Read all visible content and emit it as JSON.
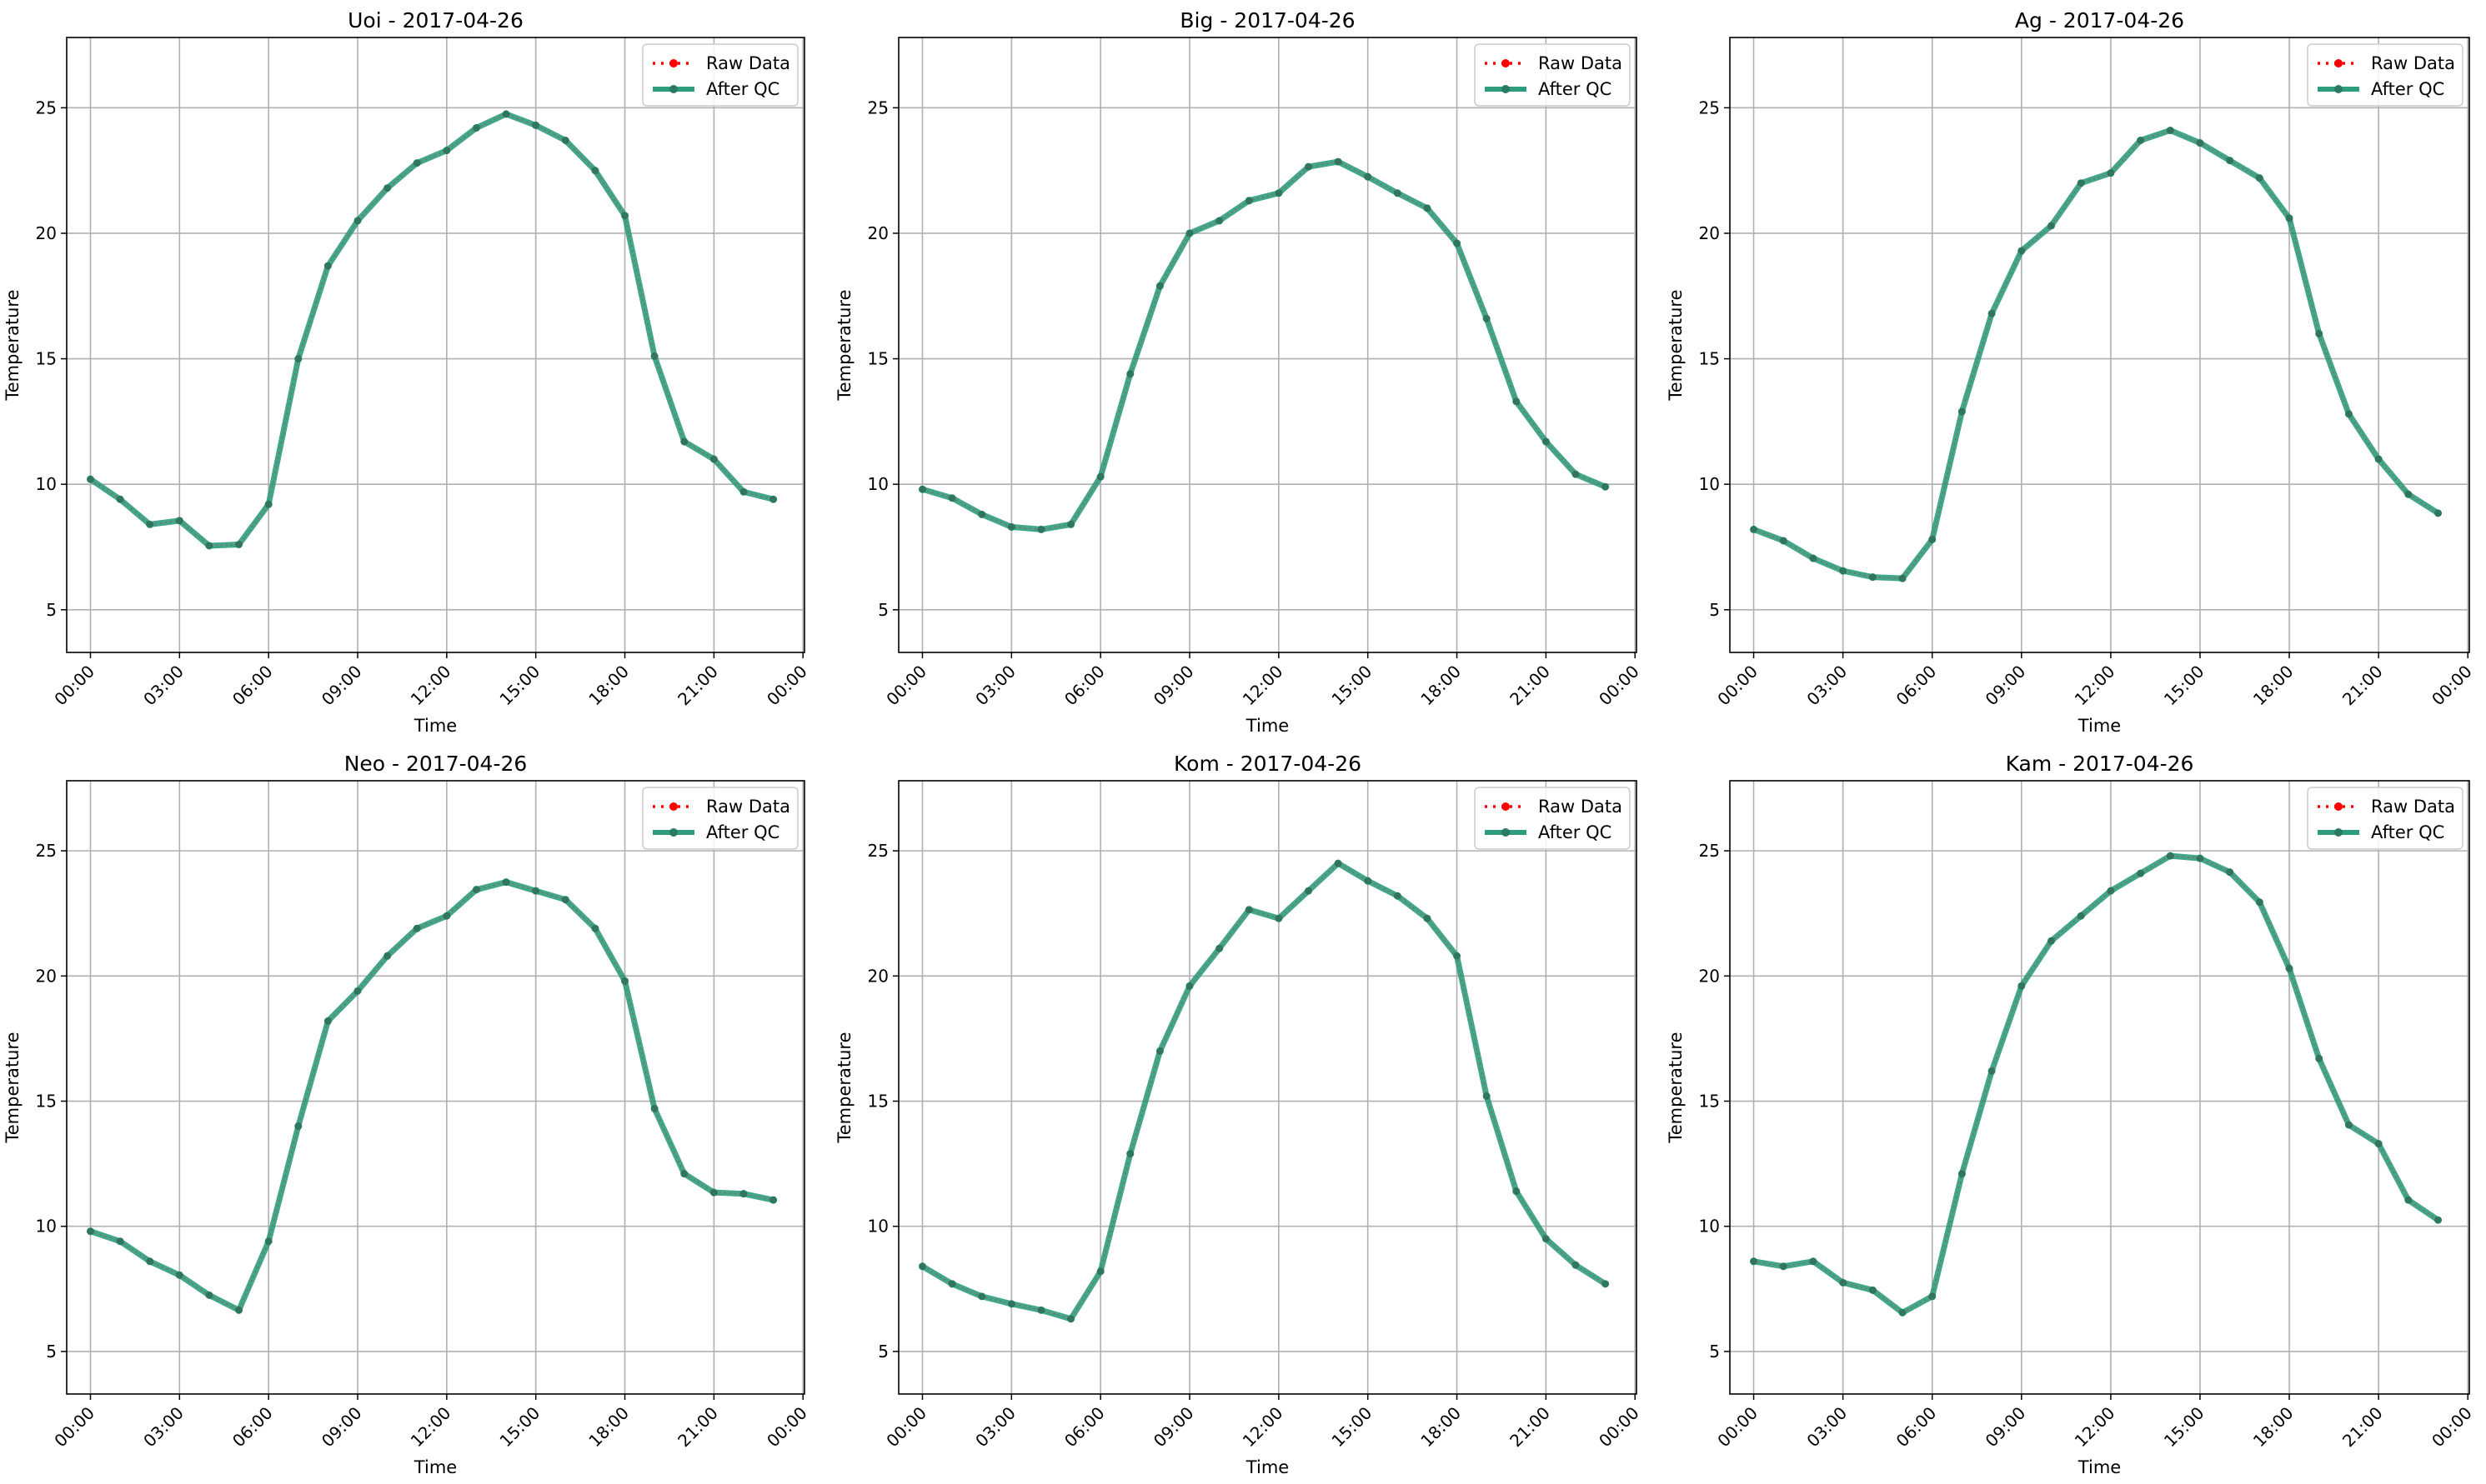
{
  "figure": {
    "legend": {
      "raw_label": "Raw Data",
      "qc_label": "After QC"
    },
    "colors": {
      "raw": "#ff0000",
      "qc": "#2e9c7e",
      "qc_marker": "#2a7a62",
      "grid": "#b0b0b0"
    }
  },
  "chart_data": [
    {
      "type": "line",
      "title": "Uoi - 2017-04-26",
      "xlabel": "Time",
      "ylabel": "Temperature",
      "x": [
        "00:00",
        "01:00",
        "02:00",
        "03:00",
        "04:00",
        "05:00",
        "06:00",
        "07:00",
        "08:00",
        "09:00",
        "10:00",
        "11:00",
        "12:00",
        "13:00",
        "14:00",
        "15:00",
        "16:00",
        "17:00",
        "18:00",
        "19:00",
        "20:00",
        "21:00",
        "22:00",
        "23:00"
      ],
      "x_ticks": [
        "00:00",
        "03:00",
        "06:00",
        "09:00",
        "12:00",
        "15:00",
        "18:00",
        "21:00",
        "00:00"
      ],
      "y_ticks": [
        5,
        10,
        15,
        20,
        25
      ],
      "ylim": [
        3.3,
        27.8
      ],
      "grid": true,
      "legend": "top-right",
      "series": [
        {
          "name": "Raw Data",
          "values": [
            10.2,
            9.4,
            8.4,
            8.55,
            7.55,
            7.6,
            9.2,
            15.0,
            18.7,
            20.5,
            21.8,
            22.8,
            23.3,
            24.2,
            24.75,
            24.3,
            23.7,
            22.5,
            20.7,
            15.1,
            11.7,
            11.0,
            9.7,
            9.4
          ]
        },
        {
          "name": "After QC",
          "values": [
            10.2,
            9.4,
            8.4,
            8.55,
            7.55,
            7.6,
            9.2,
            15.0,
            18.7,
            20.5,
            21.8,
            22.8,
            23.3,
            24.2,
            24.75,
            24.3,
            23.7,
            22.5,
            20.7,
            15.1,
            11.7,
            11.0,
            9.7,
            9.4
          ]
        }
      ]
    },
    {
      "type": "line",
      "title": "Big - 2017-04-26",
      "xlabel": "Time",
      "ylabel": "Temperature",
      "x": [
        "00:00",
        "01:00",
        "02:00",
        "03:00",
        "04:00",
        "05:00",
        "06:00",
        "07:00",
        "08:00",
        "09:00",
        "10:00",
        "11:00",
        "12:00",
        "13:00",
        "14:00",
        "15:00",
        "16:00",
        "17:00",
        "18:00",
        "19:00",
        "20:00",
        "21:00",
        "22:00",
        "23:00"
      ],
      "x_ticks": [
        "00:00",
        "03:00",
        "06:00",
        "09:00",
        "12:00",
        "15:00",
        "18:00",
        "21:00",
        "00:00"
      ],
      "y_ticks": [
        5,
        10,
        15,
        20,
        25
      ],
      "ylim": [
        3.3,
        27.8
      ],
      "grid": true,
      "legend": "top-right",
      "series": [
        {
          "name": "Raw Data",
          "values": [
            9.8,
            9.45,
            8.8,
            8.3,
            8.2,
            8.4,
            10.3,
            14.4,
            17.9,
            20.0,
            20.5,
            21.3,
            21.6,
            22.65,
            22.85,
            22.25,
            21.6,
            21.0,
            19.6,
            16.6,
            13.3,
            11.7,
            10.4,
            9.9
          ]
        },
        {
          "name": "After QC",
          "values": [
            9.8,
            9.45,
            8.8,
            8.3,
            8.2,
            8.4,
            10.3,
            14.4,
            17.9,
            20.0,
            20.5,
            21.3,
            21.6,
            22.65,
            22.85,
            22.25,
            21.6,
            21.0,
            19.6,
            16.6,
            13.3,
            11.7,
            10.4,
            9.9
          ]
        }
      ]
    },
    {
      "type": "line",
      "title": "Ag - 2017-04-26",
      "xlabel": "Time",
      "ylabel": "Temperature",
      "x": [
        "00:00",
        "01:00",
        "02:00",
        "03:00",
        "04:00",
        "05:00",
        "06:00",
        "07:00",
        "08:00",
        "09:00",
        "10:00",
        "11:00",
        "12:00",
        "13:00",
        "14:00",
        "15:00",
        "16:00",
        "17:00",
        "18:00",
        "19:00",
        "20:00",
        "21:00",
        "22:00",
        "23:00"
      ],
      "x_ticks": [
        "00:00",
        "03:00",
        "06:00",
        "09:00",
        "12:00",
        "15:00",
        "18:00",
        "21:00",
        "00:00"
      ],
      "y_ticks": [
        5,
        10,
        15,
        20,
        25
      ],
      "ylim": [
        3.3,
        27.8
      ],
      "grid": true,
      "legend": "top-right",
      "series": [
        {
          "name": "Raw Data",
          "values": [
            8.2,
            7.75,
            7.05,
            6.55,
            6.3,
            6.25,
            7.8,
            12.9,
            16.8,
            19.3,
            20.3,
            22.0,
            22.4,
            23.7,
            24.1,
            23.6,
            22.9,
            22.2,
            20.6,
            16.0,
            12.8,
            11.0,
            9.6,
            8.85
          ]
        },
        {
          "name": "After QC",
          "values": [
            8.2,
            7.75,
            7.05,
            6.55,
            6.3,
            6.25,
            7.8,
            12.9,
            16.8,
            19.3,
            20.3,
            22.0,
            22.4,
            23.7,
            24.1,
            23.6,
            22.9,
            22.2,
            20.6,
            16.0,
            12.8,
            11.0,
            9.6,
            8.85
          ]
        }
      ]
    },
    {
      "type": "line",
      "title": "Neo - 2017-04-26",
      "xlabel": "Time",
      "ylabel": "Temperature",
      "x": [
        "00:00",
        "01:00",
        "02:00",
        "03:00",
        "04:00",
        "05:00",
        "06:00",
        "07:00",
        "08:00",
        "09:00",
        "10:00",
        "11:00",
        "12:00",
        "13:00",
        "14:00",
        "15:00",
        "16:00",
        "17:00",
        "18:00",
        "19:00",
        "20:00",
        "21:00",
        "22:00",
        "23:00"
      ],
      "x_ticks": [
        "00:00",
        "03:00",
        "06:00",
        "09:00",
        "12:00",
        "15:00",
        "18:00",
        "21:00",
        "00:00"
      ],
      "y_ticks": [
        5,
        10,
        15,
        20,
        25
      ],
      "ylim": [
        3.3,
        27.8
      ],
      "grid": true,
      "legend": "top-right",
      "series": [
        {
          "name": "Raw Data",
          "values": [
            9.8,
            9.4,
            8.6,
            8.05,
            7.25,
            6.65,
            9.4,
            14.0,
            18.2,
            19.4,
            20.8,
            21.9,
            22.4,
            23.45,
            23.75,
            23.4,
            23.05,
            21.9,
            19.8,
            14.7,
            12.1,
            11.35,
            11.3,
            11.05
          ]
        },
        {
          "name": "After QC",
          "values": [
            9.8,
            9.4,
            8.6,
            8.05,
            7.25,
            6.65,
            9.4,
            14.0,
            18.2,
            19.4,
            20.8,
            21.9,
            22.4,
            23.45,
            23.75,
            23.4,
            23.05,
            21.9,
            19.8,
            14.7,
            12.1,
            11.35,
            11.3,
            11.05
          ]
        }
      ]
    },
    {
      "type": "line",
      "title": "Kom - 2017-04-26",
      "xlabel": "Time",
      "ylabel": "Temperature",
      "x": [
        "00:00",
        "01:00",
        "02:00",
        "03:00",
        "04:00",
        "05:00",
        "06:00",
        "07:00",
        "08:00",
        "09:00",
        "10:00",
        "11:00",
        "12:00",
        "13:00",
        "14:00",
        "15:00",
        "16:00",
        "17:00",
        "18:00",
        "19:00",
        "20:00",
        "21:00",
        "22:00",
        "23:00"
      ],
      "x_ticks": [
        "00:00",
        "03:00",
        "06:00",
        "09:00",
        "12:00",
        "15:00",
        "18:00",
        "21:00",
        "00:00"
      ],
      "y_ticks": [
        5,
        10,
        15,
        20,
        25
      ],
      "ylim": [
        3.3,
        27.8
      ],
      "grid": true,
      "legend": "top-right",
      "series": [
        {
          "name": "Raw Data",
          "values": [
            8.4,
            7.7,
            7.2,
            6.9,
            6.65,
            6.3,
            8.2,
            12.9,
            17.0,
            19.6,
            21.1,
            22.65,
            22.3,
            23.4,
            24.5,
            23.8,
            23.2,
            22.3,
            20.8,
            15.2,
            11.4,
            9.5,
            8.45,
            7.7
          ]
        },
        {
          "name": "After QC",
          "values": [
            8.4,
            7.7,
            7.2,
            6.9,
            6.65,
            6.3,
            8.2,
            12.9,
            17.0,
            19.6,
            21.1,
            22.65,
            22.3,
            23.4,
            24.5,
            23.8,
            23.2,
            22.3,
            20.8,
            15.2,
            11.4,
            9.5,
            8.45,
            7.7
          ]
        }
      ]
    },
    {
      "type": "line",
      "title": "Kam - 2017-04-26",
      "xlabel": "Time",
      "ylabel": "Temperature",
      "x": [
        "00:00",
        "01:00",
        "02:00",
        "03:00",
        "04:00",
        "05:00",
        "06:00",
        "07:00",
        "08:00",
        "09:00",
        "10:00",
        "11:00",
        "12:00",
        "13:00",
        "14:00",
        "15:00",
        "16:00",
        "17:00",
        "18:00",
        "19:00",
        "20:00",
        "21:00",
        "22:00",
        "23:00"
      ],
      "x_ticks": [
        "00:00",
        "03:00",
        "06:00",
        "09:00",
        "12:00",
        "15:00",
        "18:00",
        "21:00",
        "00:00"
      ],
      "y_ticks": [
        5,
        10,
        15,
        20,
        25
      ],
      "ylim": [
        3.3,
        27.8
      ],
      "grid": true,
      "legend": "top-right",
      "series": [
        {
          "name": "Raw Data",
          "values": [
            8.6,
            8.4,
            8.6,
            7.75,
            7.45,
            6.55,
            7.2,
            12.1,
            16.2,
            19.6,
            21.4,
            22.4,
            23.4,
            24.1,
            24.8,
            24.7,
            24.15,
            22.95,
            20.3,
            16.7,
            14.05,
            13.3,
            11.05,
            10.25
          ]
        },
        {
          "name": "After QC",
          "values": [
            8.6,
            8.4,
            8.6,
            7.75,
            7.45,
            6.55,
            7.2,
            12.1,
            16.2,
            19.6,
            21.4,
            22.4,
            23.4,
            24.1,
            24.8,
            24.7,
            24.15,
            22.95,
            20.3,
            16.7,
            14.05,
            13.3,
            11.05,
            10.25
          ]
        }
      ]
    }
  ]
}
